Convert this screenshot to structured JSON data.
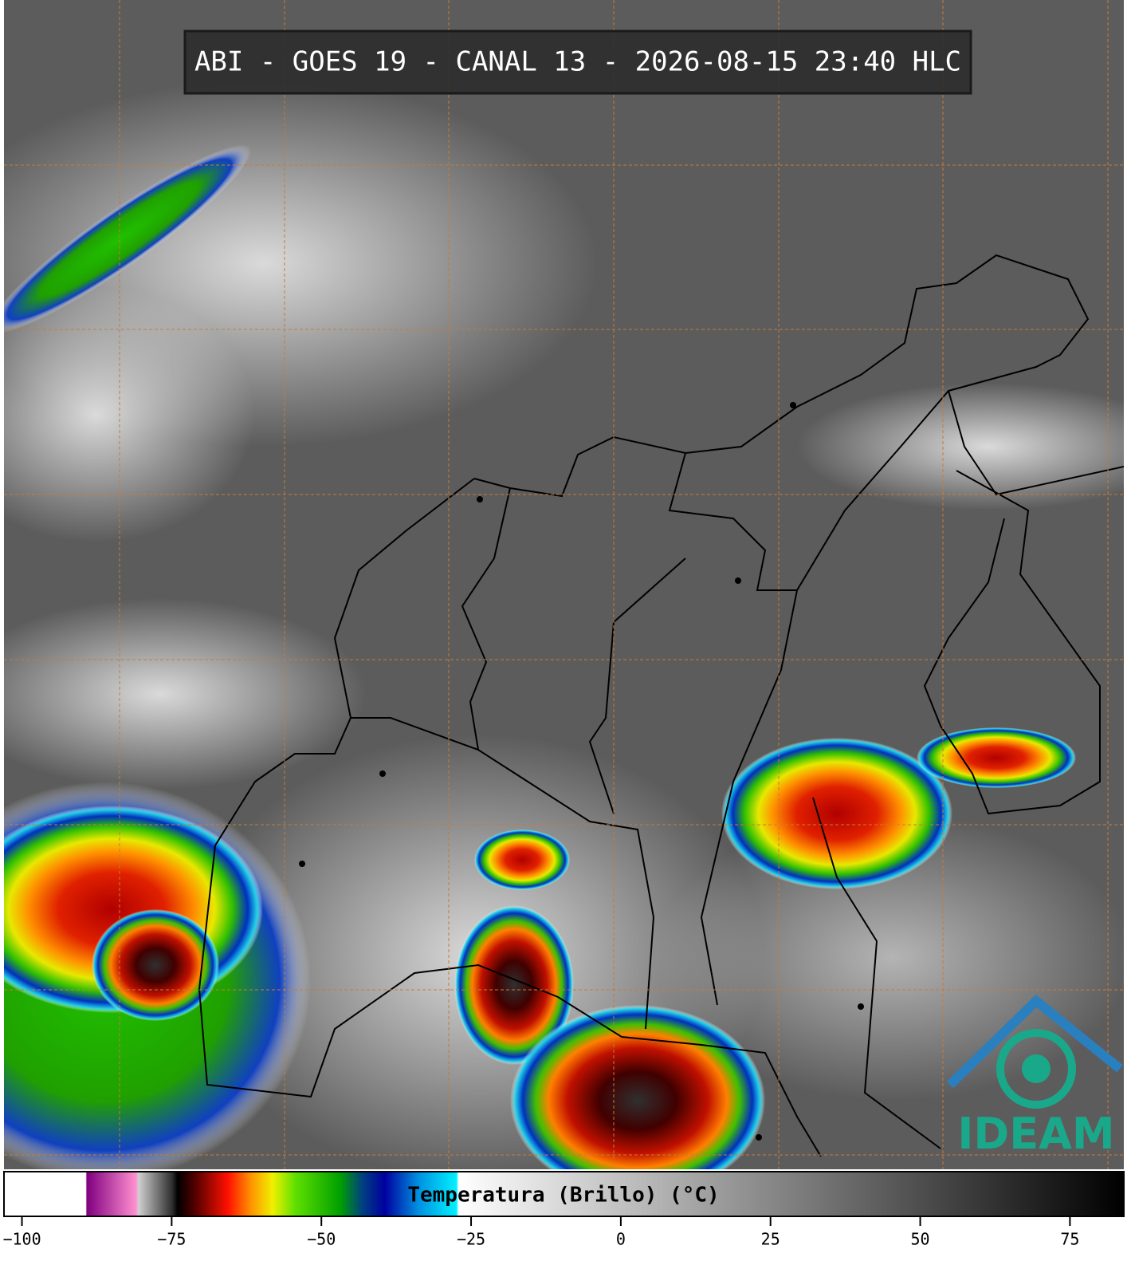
{
  "header": {
    "title": "ABI - GOES 19 - CANAL 13 - 2026-08-15 23:40 HLC"
  },
  "colorbar": {
    "label": "Temperatura (Brillo) (°C)",
    "xlim": [
      -103,
      84
    ],
    "ticks": [
      {
        "value": -100,
        "label": "−100"
      },
      {
        "value": -75,
        "label": "−75"
      },
      {
        "value": -50,
        "label": "−50"
      },
      {
        "value": -25,
        "label": "−25"
      },
      0,
      25,
      50,
      75
    ]
  },
  "logo": {
    "text": "IDEAM"
  }
}
